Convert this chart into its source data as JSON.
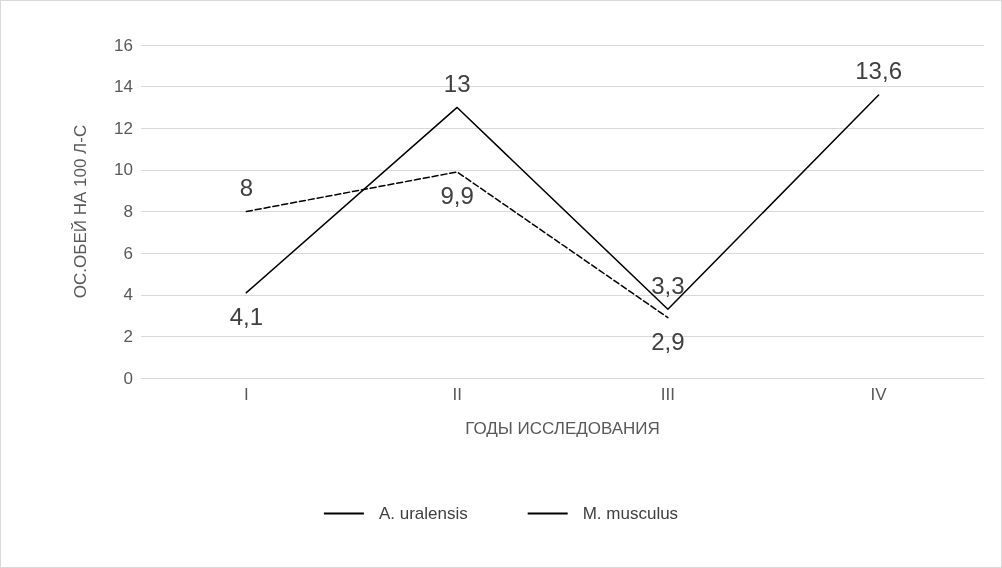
{
  "chart_data": {
    "type": "line",
    "xlabel": "ГОДЫ ИССЛЕДОВАНИЯ",
    "ylabel": "ОС.ОБЕЙ НА 100 Л-С",
    "categories": [
      "I",
      "II",
      "III",
      "IV"
    ],
    "series": [
      {
        "name": "A. uralensis",
        "color": "#000000",
        "values": [
          4.1,
          13,
          3.3,
          13.6
        ],
        "value_labels": [
          "4,1",
          "13",
          "3,3",
          "13,6"
        ],
        "line_style": "solid"
      },
      {
        "name": "M. musculus",
        "color": "#000000",
        "values": [
          8,
          9.9,
          2.9,
          null
        ],
        "value_labels": [
          "8",
          "9,9",
          "2,9",
          null
        ],
        "line_style": "dashed"
      }
    ],
    "ylim": [
      0,
      16
    ],
    "yticks": [
      0,
      2,
      4,
      6,
      8,
      10,
      12,
      14,
      16
    ],
    "grid": "y",
    "legend": "bottom",
    "marker": "none"
  }
}
